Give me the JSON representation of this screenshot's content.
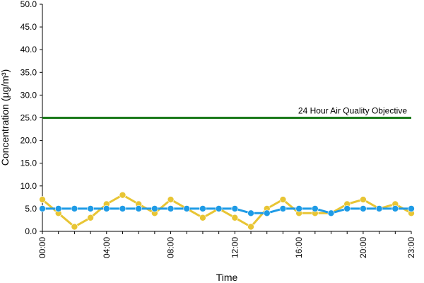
{
  "chart_data": {
    "type": "line",
    "xlabel": "Time",
    "ylabel": "Concentration (µg/m³)",
    "ylim": [
      0,
      50
    ],
    "yticks": [
      "0.0",
      "5.0",
      "10.0",
      "15.0",
      "20.0",
      "25.0",
      "30.0",
      "35.0",
      "40.0",
      "45.0",
      "50.0"
    ],
    "x": [
      "00:00",
      "01:00",
      "02:00",
      "03:00",
      "04:00",
      "05:00",
      "06:00",
      "07:00",
      "08:00",
      "09:00",
      "10:00",
      "11:00",
      "12:00",
      "13:00",
      "14:00",
      "15:00",
      "16:00",
      "17:00",
      "18:00",
      "19:00",
      "20:00",
      "21:00",
      "22:00",
      "23:00"
    ],
    "xtick_labels": [
      "00:00",
      "04:00",
      "08:00",
      "12:00",
      "16:00",
      "20:00",
      "23:00"
    ],
    "series": [
      {
        "color": "#e8c534",
        "values": [
          7,
          4,
          1,
          3,
          6,
          8,
          6,
          4,
          7,
          5,
          3,
          5,
          3,
          1,
          5,
          7,
          4,
          4,
          4,
          6,
          7,
          5,
          6,
          4
        ]
      },
      {
        "color": "#1e9be6",
        "values": [
          5,
          5,
          5,
          5,
          5,
          5,
          5,
          5,
          5,
          5,
          5,
          5,
          5,
          4,
          4,
          5,
          5,
          5,
          4,
          5,
          5,
          5,
          5,
          5
        ]
      }
    ],
    "reference_line": {
      "label": "24 Hour Air Quality Objective",
      "value": 25,
      "color": "#1a7a1a"
    },
    "grid": false,
    "legend": "none"
  }
}
